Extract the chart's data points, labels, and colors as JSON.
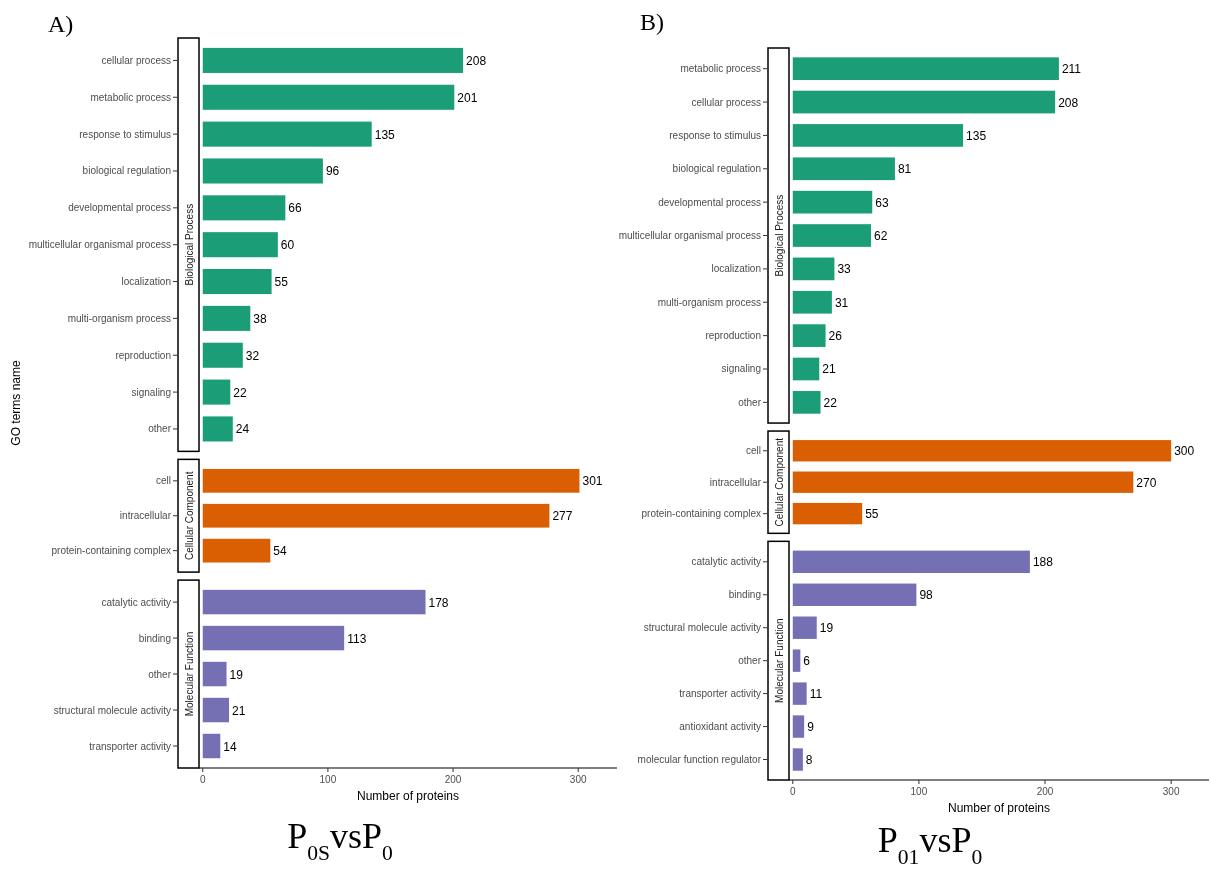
{
  "chart_data": [
    {
      "type": "bar",
      "orientation": "horizontal",
      "title": "A)",
      "ylabel": "GO terms name",
      "categories": [
        "cellular process",
        "metabolic process",
        "response to stimulus",
        "biological regulation",
        "developmental process",
        "multicellular organismal process",
        "localization",
        "multi-organism process",
        "reproduction",
        "signaling",
        "other"
      ],
      "series": [
        {
          "name": "Biological Process",
          "color": "#1b9e77",
          "values": [
            208,
            201,
            135,
            96,
            66,
            60,
            55,
            38,
            32,
            22,
            24
          ]
        }
      ],
      "tick_labels": "y",
      "data_labels": true
    },
    {
      "type": "bar",
      "orientation": "horizontal",
      "categories": [
        "cell",
        "intracellular",
        "protein-containing complex"
      ],
      "series": [
        {
          "name": "Cellular Component",
          "color": "#d95f02",
          "values": [
            301,
            277,
            54
          ]
        }
      ],
      "tick_labels": "y",
      "data_labels": true
    },
    {
      "type": "bar",
      "orientation": "horizontal",
      "xlabel": "Number of proteins",
      "annotations": [
        "P$_{0S}$vsP$_{0}$"
      ],
      "categories": [
        "catalytic activity",
        "binding",
        "other",
        "structural molecule activity",
        "transporter activity"
      ],
      "series": [
        {
          "name": "Molecular Function",
          "color": "#7570b3",
          "values": [
            178,
            113,
            19,
            21,
            14
          ]
        }
      ],
      "xlim": [
        -3,
        331
      ],
      "xticks": [
        0,
        100,
        200,
        300
      ],
      "data_labels": true
    },
    {
      "type": "bar",
      "orientation": "horizontal",
      "title": "B)",
      "categories": [
        "metabolic process",
        "cellular process",
        "response to stimulus",
        "biological regulation",
        "developmental process",
        "multicellular organismal process",
        "localization",
        "multi-organism process",
        "reproduction",
        "signaling",
        "other"
      ],
      "series": [
        {
          "name": "Biological Process",
          "color": "#1b9e77",
          "values": [
            211,
            208,
            135,
            81,
            63,
            62,
            33,
            31,
            26,
            21,
            22
          ]
        }
      ],
      "tick_labels": "y",
      "data_labels": true
    },
    {
      "type": "bar",
      "orientation": "horizontal",
      "categories": [
        "cell",
        "intracellular",
        "protein-containing complex"
      ],
      "series": [
        {
          "name": "Cellular Component",
          "color": "#d95f02",
          "values": [
            300,
            270,
            55
          ]
        }
      ],
      "tick_labels": "y",
      "data_labels": true
    },
    {
      "type": "bar",
      "orientation": "horizontal",
      "xlabel": "Number of proteins",
      "annotations": [
        "P$_{01}$vsP$_{0}$"
      ],
      "categories": [
        "catalytic activity",
        "binding",
        "structural molecule activity",
        "other",
        "transporter activity",
        "antioxidant activity",
        "molecular function regulator"
      ],
      "series": [
        {
          "name": "Molecular Function",
          "color": "#7570b3",
          "values": [
            188,
            98,
            19,
            6,
            11,
            9,
            8
          ]
        }
      ],
      "xlim": [
        -3,
        330
      ],
      "xticks": [
        0,
        100,
        200,
        300
      ],
      "data_labels": true
    }
  ]
}
